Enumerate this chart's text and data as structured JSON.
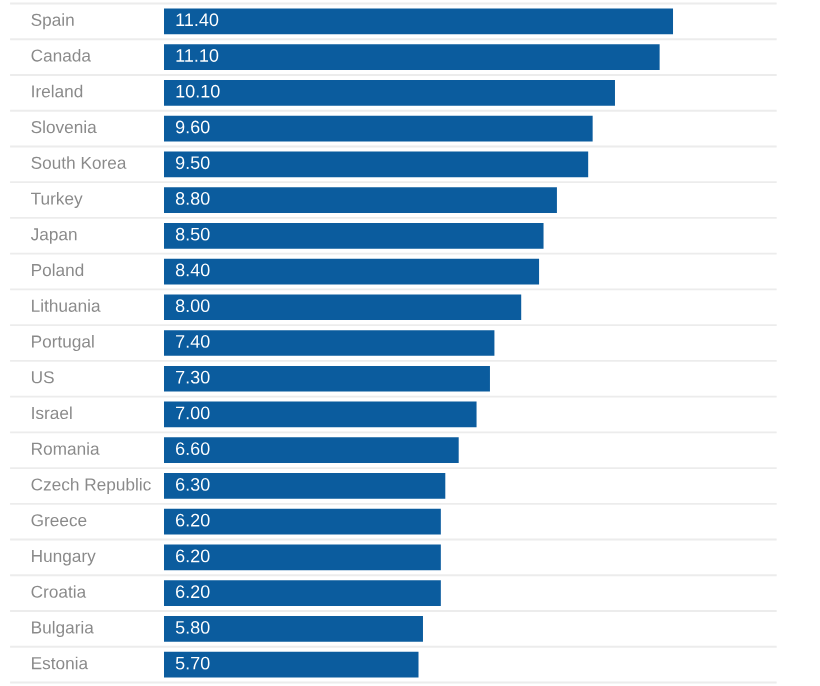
{
  "chart_data": {
    "type": "bar",
    "orientation": "horizontal",
    "categories": [
      "Spain",
      "Canada",
      "Ireland",
      "Slovenia",
      "South Korea",
      "Turkey",
      "Japan",
      "Poland",
      "Lithuania",
      "Portugal",
      "US",
      "Israel",
      "Romania",
      "Czech Republic",
      "Greece",
      "Hungary",
      "Croatia",
      "Bulgaria",
      "Estonia"
    ],
    "values": [
      11.4,
      11.1,
      10.1,
      9.6,
      9.5,
      8.8,
      8.5,
      8.4,
      8.0,
      7.4,
      7.3,
      7.0,
      6.6,
      6.3,
      6.2,
      6.2,
      6.2,
      5.8,
      5.7
    ],
    "value_labels": [
      "11.40",
      "11.10",
      "10.10",
      "9.60",
      "9.50",
      "8.80",
      "8.50",
      "8.40",
      "8.00",
      "7.40",
      "7.30",
      "7.00",
      "6.60",
      "6.30",
      "6.20",
      "6.20",
      "6.20",
      "5.80",
      "5.70"
    ],
    "color": "#0b5c9e",
    "xlim": [
      0,
      13.7
    ],
    "grid": "y",
    "tick_labels": "y"
  }
}
